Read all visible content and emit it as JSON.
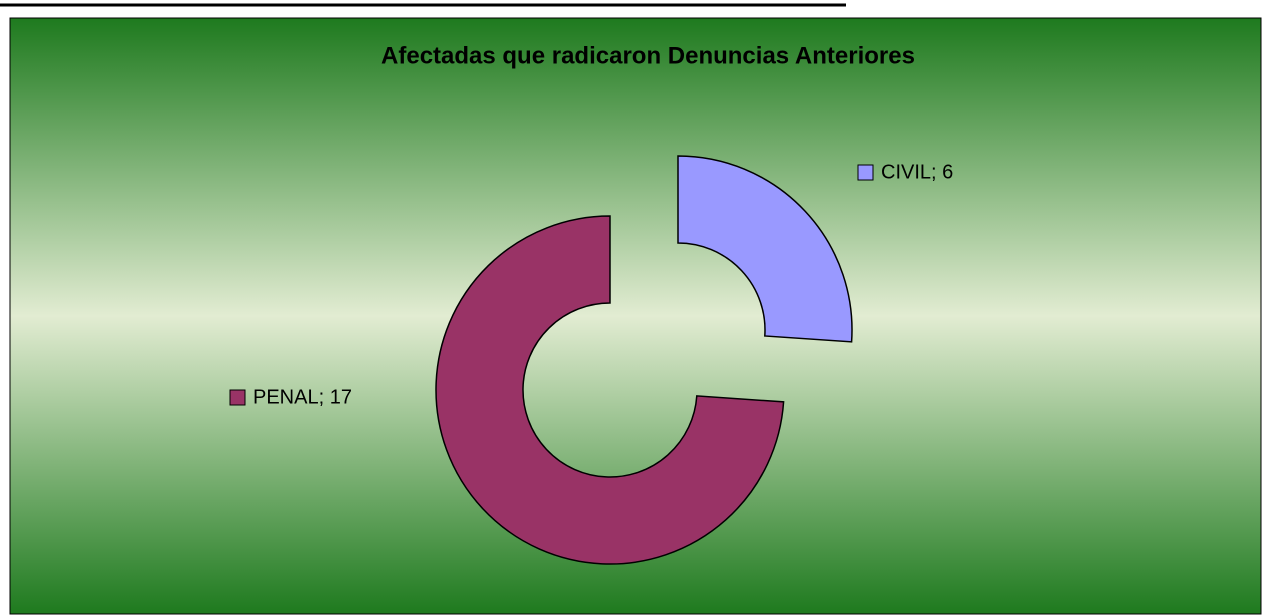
{
  "chart_data": {
    "type": "donut",
    "title": "Afectadas que radicaron Denuncias Anteriores",
    "categories": [
      "CIVIL",
      "PENAL"
    ],
    "values": [
      6,
      17
    ],
    "value_labels": [
      "CIVIL; 6",
      "PENAL; 17"
    ],
    "colors": [
      "#9999ff",
      "#993366"
    ]
  }
}
